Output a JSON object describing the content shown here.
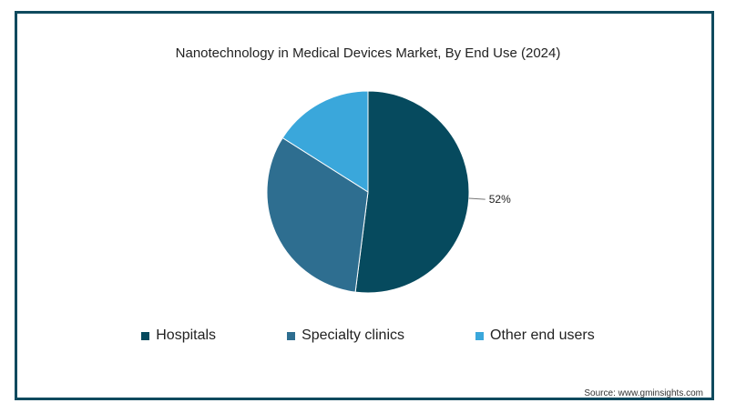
{
  "chart_data": {
    "type": "pie",
    "title": "Nanotechnology in Medical Devices Market, By End Use (2024)",
    "slices": [
      {
        "name": "Hospitals",
        "value": 52,
        "color": "#064a5e",
        "label": "52%"
      },
      {
        "name": "Specialty clinics",
        "value": 32,
        "color": "#2e6e90",
        "label": ""
      },
      {
        "name": "Other end users",
        "value": 16,
        "color": "#3aa7db",
        "label": ""
      }
    ],
    "legend_position": "bottom"
  },
  "source": "Source: www.gminsights.com"
}
